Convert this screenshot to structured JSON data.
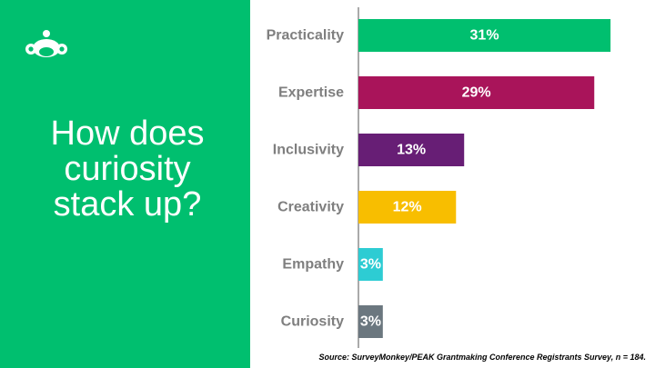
{
  "slide": {
    "title": "How does\ncuriosity\nstack up?",
    "source": "Source: SurveyMonkey/PEAK Grantmaking Conference Registrants Survey, n = 184.",
    "accent_color": "#00bf6f",
    "logo_icon": "surveymonkey-logo-icon"
  },
  "chart_data": {
    "type": "bar",
    "orientation": "horizontal",
    "categories": [
      "Practicality",
      "Expertise",
      "Inclusivity",
      "Creativity",
      "Empathy",
      "Curiosity"
    ],
    "values": [
      31,
      29,
      13,
      12,
      3,
      3
    ],
    "value_labels": [
      "31%",
      "29%",
      "13%",
      "12%",
      "3%",
      "3%"
    ],
    "colors": [
      "#00bf6f",
      "#a9145a",
      "#671e75",
      "#f8be00",
      "#2dccd3",
      "#6b777f"
    ],
    "unit": "%",
    "xlim": [
      0,
      33
    ],
    "title": "",
    "xlabel": "",
    "ylabel": "",
    "grid": false,
    "legend": "none"
  }
}
